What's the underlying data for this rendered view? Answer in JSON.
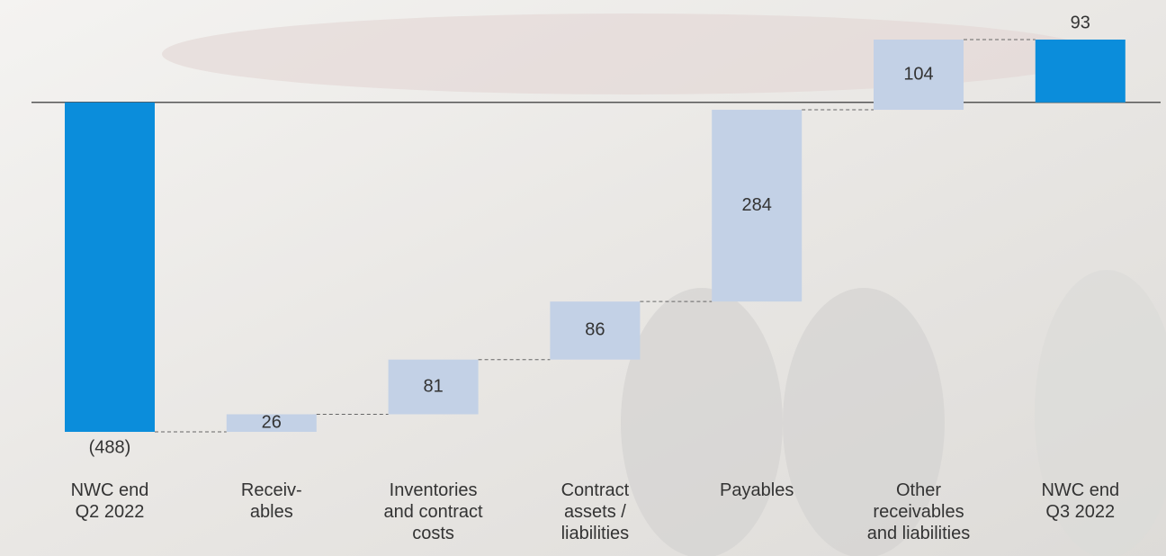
{
  "chart_data": {
    "type": "waterfall",
    "categories": [
      "NWC end\nQ2 2022",
      "Receiv-\nables",
      "Inventories\nand contract\ncosts",
      "Contract\nassets /\nliabilities",
      "Payables",
      "Other\nreceivables\nand liabilities",
      "NWC end\nQ3 2022"
    ],
    "values": [
      -488,
      26,
      81,
      86,
      284,
      104,
      93
    ],
    "value_labels": [
      "(488)",
      "26",
      "81",
      "86",
      "284",
      "104",
      "93"
    ],
    "measure": [
      "absolute",
      "relative",
      "relative",
      "relative",
      "relative",
      "relative",
      "total"
    ],
    "total_color": "#0b8ddb",
    "delta_color": "#c3d1e6"
  }
}
